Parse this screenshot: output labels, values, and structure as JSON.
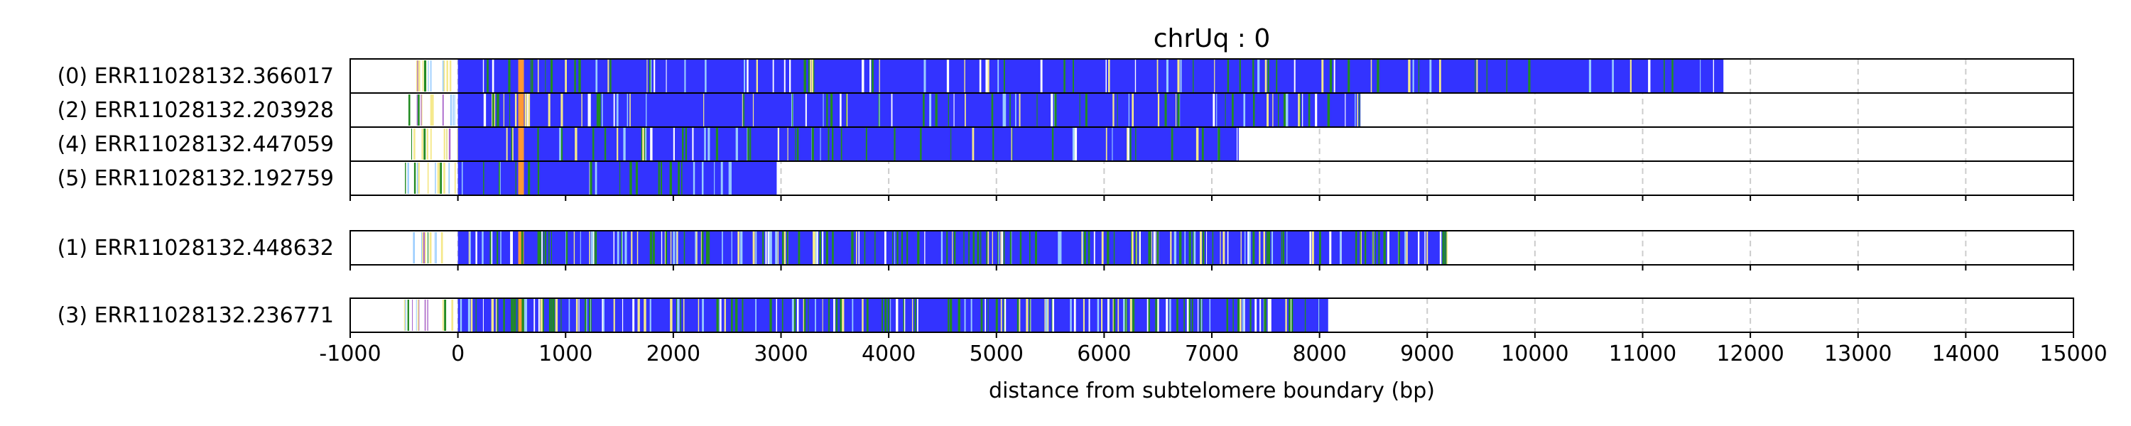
{
  "chart_data": {
    "type": "track-plot",
    "title": "chrUq : 0",
    "xlabel": "distance from subtelomere boundary (bp)",
    "xlim": [
      -1000,
      15000
    ],
    "xticks": [
      -1000,
      0,
      1000,
      2000,
      3000,
      4000,
      5000,
      6000,
      7000,
      8000,
      9000,
      10000,
      11000,
      12000,
      13000,
      14000,
      15000
    ],
    "vgrid": true,
    "colors": {
      "telomere": "#3333ff",
      "green": "#228b22",
      "yellow": "#f5e88a",
      "orange": "#ff9933",
      "lightblue": "#99ccff",
      "white": "#ffffff",
      "purple": "#aa66cc",
      "grid": "#cccccc"
    },
    "groups": [
      {
        "tracks": [
          {
            "label": "(0) ERR11028132.366017",
            "start": -400,
            "end": 11750,
            "density": 0.35,
            "seed": 11
          },
          {
            "label": "(2) ERR11028132.203928",
            "start": -500,
            "end": 8380,
            "density": 0.5,
            "seed": 23
          },
          {
            "label": "(4) ERR11028132.447059",
            "start": -450,
            "end": 7250,
            "density": 0.4,
            "seed": 37
          },
          {
            "label": "(5) ERR11028132.192759",
            "start": -500,
            "end": 2960,
            "density": 0.4,
            "seed": 41
          }
        ]
      },
      {
        "tracks": [
          {
            "label": "(1) ERR11028132.448632",
            "start": -420,
            "end": 9180,
            "density": 1.0,
            "seed": 53
          }
        ]
      },
      {
        "tracks": [
          {
            "label": "(3) ERR11028132.236771",
            "start": -500,
            "end": 8080,
            "density": 1.0,
            "seed": 67
          }
        ]
      }
    ]
  }
}
